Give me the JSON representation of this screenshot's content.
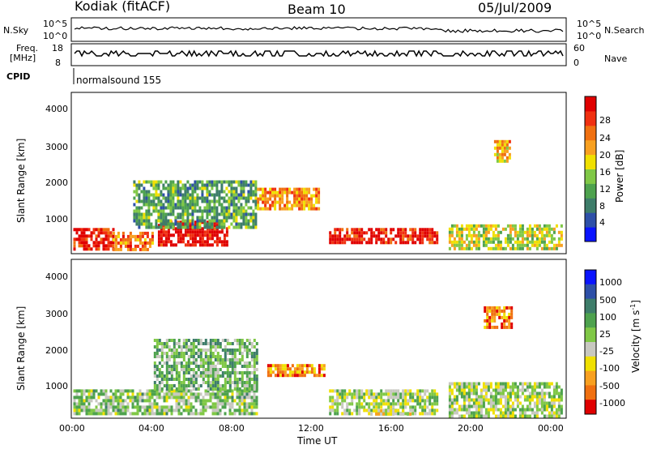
{
  "header": {
    "radar": "Kodiak (fitACF)",
    "beam": "Beam 10",
    "date": "05/Jul/2009"
  },
  "top_panels": {
    "nsky_label": "N.Sky",
    "nsearch_label": "N.Search",
    "nsky_ticks": [
      "10^5",
      "10^0"
    ],
    "nsearch_ticks": [
      "10^5",
      "10^0"
    ],
    "freq_label_line1": "Freq.",
    "freq_label_line2": "[MHz]",
    "freq_ticks": [
      "18",
      "8"
    ],
    "nave_label": "Nave",
    "nave_ticks": [
      "60",
      "0"
    ],
    "cpid_label": "CPID",
    "cpid_value": "normalsound 155"
  },
  "chart_data": [
    {
      "type": "heatmap",
      "name": "power",
      "ylabel": "Slant Range [km]",
      "yticks": [
        "1000",
        "2000",
        "3000",
        "4000"
      ],
      "ylim": [
        200,
        4600
      ],
      "xlim_hours": [
        0,
        24
      ],
      "colorbar_label": "Power [dB]",
      "colorbar_ticks": [
        "4",
        "8",
        "12",
        "16",
        "20",
        "24",
        "28"
      ],
      "colorbar_colors": [
        "#0a14ff",
        "#2e50a8",
        "#3e7d6a",
        "#4ea24e",
        "#80c846",
        "#f0e000",
        "#f8a020",
        "#f07010",
        "#f03010",
        "#e00000"
      ],
      "regions": [
        {
          "t0": 0.1,
          "t1": 2.0,
          "r0": 300,
          "r1": 900,
          "level": 0.9
        },
        {
          "t0": 2.0,
          "t1": 4.0,
          "r0": 300,
          "r1": 800,
          "level": 0.75
        },
        {
          "t0": 4.2,
          "t1": 7.5,
          "r0": 400,
          "r1": 1100,
          "level": 0.95
        },
        {
          "t0": 3.0,
          "t1": 9.0,
          "r0": 900,
          "r1": 2200,
          "level": 0.35
        },
        {
          "t0": 9.0,
          "t1": 12.0,
          "r0": 1400,
          "r1": 2000,
          "level": 0.7
        },
        {
          "t0": 12.5,
          "t1": 17.7,
          "r0": 500,
          "r1": 900,
          "level": 0.9
        },
        {
          "t0": 18.3,
          "t1": 23.8,
          "r0": 300,
          "r1": 1000,
          "level": 0.5
        },
        {
          "t0": 20.5,
          "t1": 21.3,
          "r0": 2700,
          "r1": 3300,
          "level": 0.65
        }
      ]
    },
    {
      "type": "heatmap",
      "name": "velocity",
      "ylabel": "Slant Range [km]",
      "yticks": [
        "1000",
        "2000",
        "3000",
        "4000"
      ],
      "ylim": [
        200,
        4600
      ],
      "xlim_hours": [
        0,
        24
      ],
      "xlabel": "Time UT",
      "xticks": [
        "00:00",
        "04:00",
        "08:00",
        "12:00",
        "16:00",
        "20:00",
        "00:00"
      ],
      "colorbar_label": "Velocity [m s",
      "colorbar_label_sup": "-1",
      "colorbar_label_end": "]",
      "colorbar_ticks": [
        "1000",
        "500",
        "100",
        "25",
        "-25",
        "-100",
        "-500",
        "-1000"
      ],
      "colorbar_colors": [
        "#0a14ff",
        "#2e50a8",
        "#3e7d6a",
        "#4ea24e",
        "#80c846",
        "#c8c8c0",
        "#f0e000",
        "#f8a020",
        "#f07010",
        "#e00000"
      ],
      "regions": [
        {
          "t0": 0.1,
          "t1": 9.0,
          "r0": 300,
          "r1": 1000,
          "level": 0.45
        },
        {
          "t0": 4.0,
          "t1": 9.0,
          "r0": 1000,
          "r1": 2400,
          "level": 0.4
        },
        {
          "t0": 9.5,
          "t1": 12.3,
          "r0": 1400,
          "r1": 1700,
          "level": 0.8
        },
        {
          "t0": 12.5,
          "t1": 17.7,
          "r0": 300,
          "r1": 1000,
          "level": 0.5
        },
        {
          "t0": 14.5,
          "t1": 16.5,
          "r0": 300,
          "r1": 450,
          "level": 0.63
        },
        {
          "t0": 18.3,
          "t1": 23.8,
          "r0": 300,
          "r1": 1200,
          "level": 0.5
        },
        {
          "t0": 20.0,
          "t1": 21.3,
          "r0": 2700,
          "r1": 3300,
          "level": 0.85
        }
      ]
    }
  ]
}
